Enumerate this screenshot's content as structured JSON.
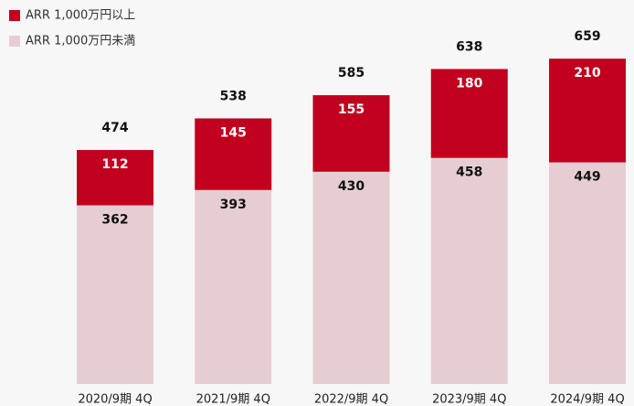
{
  "chart_data": {
    "type": "stacked-bar",
    "categories": [
      "2020/9期 4Q",
      "2021/9期 4Q",
      "2022/9期 4Q",
      "2023/9期 4Q",
      "2024/9期 4Q"
    ],
    "series": [
      {
        "name": "ARR 1,000万円未満",
        "color": "#e5cdd3",
        "values": [
          362,
          393,
          430,
          458,
          449
        ]
      },
      {
        "name": "ARR 1,000万円以上",
        "color": "#c0001e",
        "values": [
          112,
          145,
          155,
          180,
          210
        ]
      }
    ],
    "totals": [
      474,
      538,
      585,
      638,
      659
    ],
    "legend": "top-left"
  }
}
